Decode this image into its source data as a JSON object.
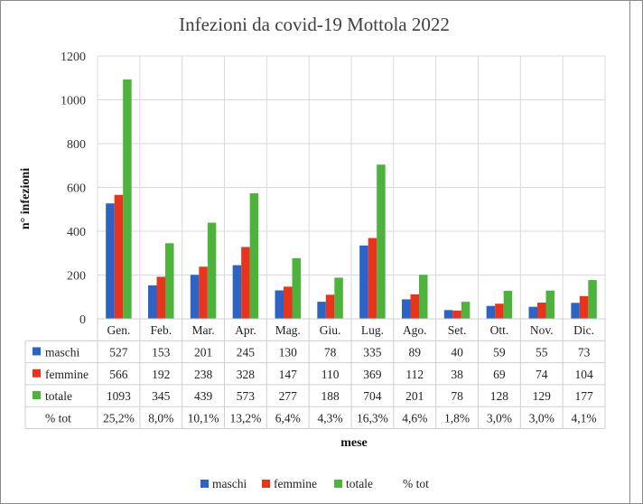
{
  "chart_data": {
    "type": "bar",
    "title": "Infezioni da covid-19  Mottola 2022",
    "xlabel": "mese",
    "ylabel": "n° infezioni",
    "ylim": [
      0,
      1200
    ],
    "yticks": [
      0,
      200,
      400,
      600,
      800,
      1000,
      1200
    ],
    "categories": [
      "Gen.",
      "Feb.",
      "Mar.",
      "Apr.",
      "Mag.",
      "Giu.",
      "Lug.",
      "Ago.",
      "Set.",
      "Ott.",
      "Nov.",
      "Dic."
    ],
    "series": [
      {
        "name": "maschi",
        "color": "#2e63c6",
        "values": [
          527,
          153,
          201,
          245,
          130,
          78,
          335,
          89,
          40,
          59,
          55,
          73
        ]
      },
      {
        "name": "femmine",
        "color": "#e8341c",
        "values": [
          566,
          192,
          238,
          328,
          147,
          110,
          369,
          112,
          38,
          69,
          74,
          104
        ]
      },
      {
        "name": "totale",
        "color": "#4db33d",
        "values": [
          1093,
          345,
          439,
          573,
          277,
          188,
          704,
          201,
          78,
          128,
          129,
          177
        ]
      }
    ],
    "table_row": {
      "name": "% tot",
      "values": [
        "25,2%",
        "8,0%",
        "10,1%",
        "13,2%",
        "6,4%",
        "4,3%",
        "16,3%",
        "4,6%",
        "1,8%",
        "3,0%",
        "3,0%",
        "4,1%"
      ]
    },
    "grid": true,
    "legend": "bottom"
  }
}
